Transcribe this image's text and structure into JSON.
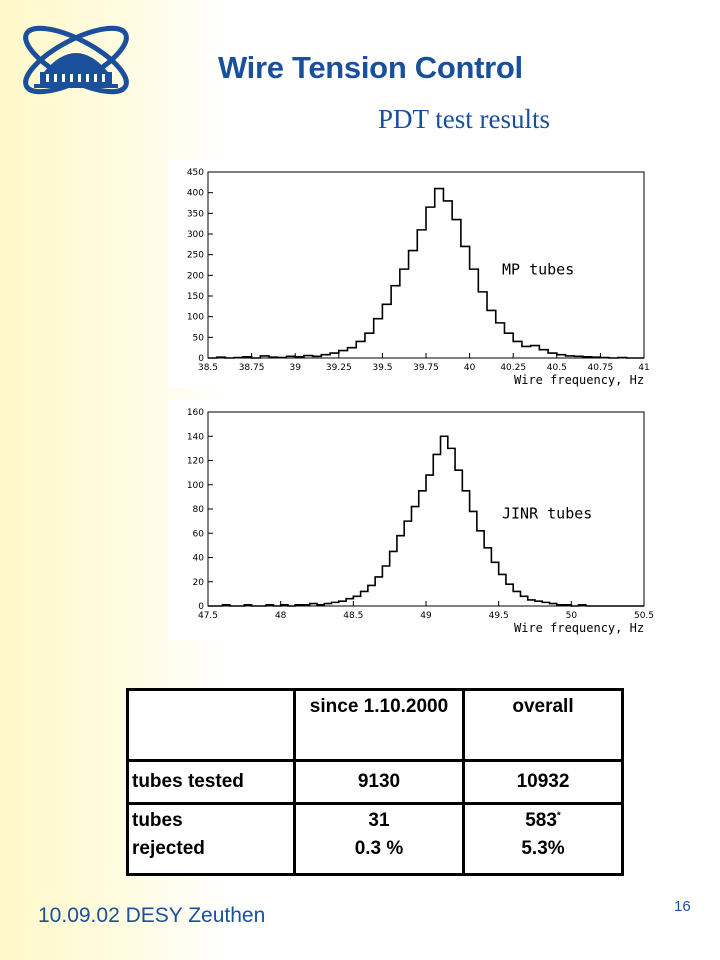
{
  "header": {
    "title": "Wire Tension Control",
    "subtitle": "PDT test results"
  },
  "chart_data": [
    {
      "type": "histogram",
      "annotation": "MP tubes",
      "xlabel": "Wire frequency, Hz",
      "xlim": [
        38.5,
        41
      ],
      "ylim": [
        0,
        450
      ],
      "x_ticks": [
        "38.5",
        "38.75",
        "39",
        "39.25",
        "39.5",
        "39.75",
        "40",
        "40.25",
        "40.5",
        "40.75",
        "41"
      ],
      "y_ticks": [
        "0",
        "50",
        "100",
        "150",
        "200",
        "250",
        "300",
        "350",
        "400",
        "450"
      ],
      "series": [
        {
          "x": [
            38.5,
            38.55,
            38.6,
            38.65,
            38.7,
            38.75,
            38.8,
            38.85,
            38.9,
            38.95,
            39.0,
            39.05,
            39.1,
            39.15,
            39.2,
            39.25,
            39.3,
            39.35,
            39.4,
            39.45,
            39.5,
            39.55,
            39.6,
            39.65,
            39.7,
            39.75,
            39.8,
            39.85,
            39.9,
            39.95,
            40.0,
            40.05,
            40.1,
            40.15,
            40.2,
            40.25,
            40.3,
            40.35,
            40.4,
            40.45,
            40.5,
            40.55,
            40.6,
            40.65,
            40.7,
            40.75,
            40.8,
            40.85,
            40.9,
            40.95,
            41.0
          ],
          "values": [
            0,
            2,
            0,
            1,
            3,
            0,
            5,
            2,
            1,
            4,
            3,
            6,
            4,
            8,
            12,
            18,
            25,
            40,
            60,
            95,
            130,
            175,
            215,
            260,
            310,
            365,
            410,
            380,
            335,
            270,
            215,
            160,
            115,
            85,
            60,
            40,
            28,
            30,
            20,
            12,
            8,
            5,
            4,
            3,
            2,
            1,
            0,
            1,
            0,
            0,
            0
          ]
        }
      ]
    },
    {
      "type": "histogram",
      "annotation": "JINR tubes",
      "xlabel": "Wire frequency, Hz",
      "xlim": [
        47.5,
        50.5
      ],
      "ylim": [
        0,
        160
      ],
      "x_ticks": [
        "47.5",
        "48",
        "48.5",
        "49",
        "49.5",
        "50",
        "50.5"
      ],
      "y_ticks": [
        "0",
        "20",
        "40",
        "60",
        "80",
        "100",
        "120",
        "140",
        "160"
      ],
      "series": [
        {
          "x": [
            47.5,
            47.55,
            47.6,
            47.65,
            47.7,
            47.75,
            47.8,
            47.85,
            47.9,
            47.95,
            48.0,
            48.05,
            48.1,
            48.15,
            48.2,
            48.25,
            48.3,
            48.35,
            48.4,
            48.45,
            48.5,
            48.55,
            48.6,
            48.65,
            48.7,
            48.75,
            48.8,
            48.85,
            48.9,
            48.95,
            49.0,
            49.05,
            49.1,
            49.15,
            49.2,
            49.25,
            49.3,
            49.35,
            49.4,
            49.45,
            49.5,
            49.55,
            49.6,
            49.65,
            49.7,
            49.75,
            49.8,
            49.85,
            49.9,
            49.95,
            50.0,
            50.05,
            50.1,
            50.15,
            50.2,
            50.25,
            50.3,
            50.35,
            50.4,
            50.45,
            50.5
          ],
          "values": [
            0,
            0,
            1,
            0,
            0,
            1,
            0,
            0,
            1,
            0,
            1,
            0,
            1,
            1,
            2,
            1,
            2,
            3,
            4,
            6,
            8,
            12,
            17,
            24,
            33,
            45,
            58,
            70,
            82,
            95,
            108,
            125,
            140,
            130,
            112,
            95,
            78,
            62,
            48,
            36,
            26,
            18,
            12,
            8,
            5,
            4,
            3,
            2,
            1,
            1,
            0,
            1,
            0,
            0,
            0,
            0,
            0,
            0,
            0,
            0,
            0
          ]
        }
      ]
    }
  ],
  "results_table": {
    "header": [
      "",
      "since 1.10.2000",
      "overall"
    ],
    "tested": {
      "label": "tubes tested",
      "since": "9130",
      "overall": "10932"
    },
    "rejected": {
      "label_1": "tubes",
      "label_2": "rejected",
      "since_count": "31",
      "since_pct": "0.3 %",
      "overall_count": "583",
      "overall_mark": "*",
      "overall_pct": "5.3%"
    }
  },
  "footer": {
    "date_place": "10.09.02 DESY Zeuthen",
    "page": "16"
  }
}
